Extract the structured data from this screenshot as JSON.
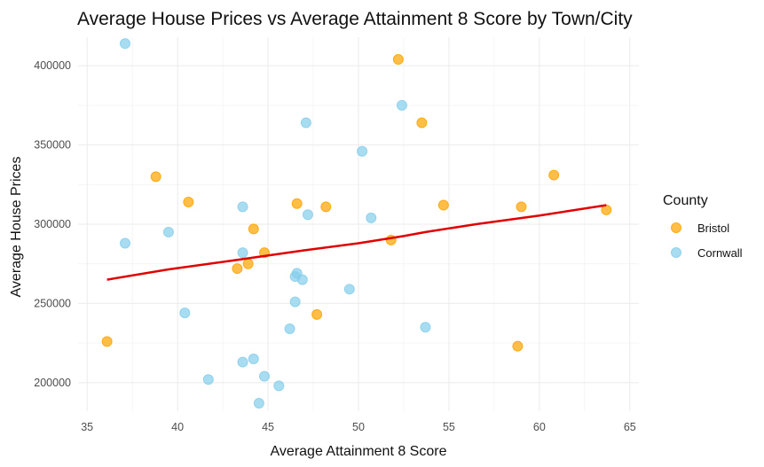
{
  "chart_data": {
    "type": "scatter",
    "title": "Average House Prices vs Average Attainment 8 Score by Town/City",
    "xlabel": "Average Attainment 8 Score",
    "ylabel": "Average House Prices",
    "xlim": [
      34.5,
      65.5
    ],
    "ylim": [
      182000,
      418000
    ],
    "x_ticks": [
      35,
      40,
      45,
      50,
      55,
      60,
      65
    ],
    "y_ticks": [
      200000,
      250000,
      300000,
      350000,
      400000
    ],
    "x_tick_labels": [
      "35",
      "40",
      "45",
      "50",
      "55",
      "60",
      "65"
    ],
    "y_tick_labels": [
      "200000",
      "250000",
      "300000",
      "350000",
      "400000"
    ],
    "grid": true,
    "legend": {
      "title": "County",
      "placement": "right",
      "entries": [
        {
          "label": "Bristol",
          "color": "#FFA500"
        },
        {
          "label": "Cornwall",
          "color": "#87CEEB"
        }
      ]
    },
    "series": [
      {
        "name": "Cornwall",
        "color": "#87CEEB",
        "points": [
          {
            "x": 37.1,
            "y": 414000
          },
          {
            "x": 37.1,
            "y": 288000
          },
          {
            "x": 39.5,
            "y": 295000
          },
          {
            "x": 40.4,
            "y": 244000
          },
          {
            "x": 41.7,
            "y": 202000
          },
          {
            "x": 43.6,
            "y": 311000
          },
          {
            "x": 43.6,
            "y": 282000
          },
          {
            "x": 43.6,
            "y": 213000
          },
          {
            "x": 44.2,
            "y": 215000
          },
          {
            "x": 44.5,
            "y": 187000
          },
          {
            "x": 44.8,
            "y": 204000
          },
          {
            "x": 45.6,
            "y": 198000
          },
          {
            "x": 46.2,
            "y": 234000
          },
          {
            "x": 46.5,
            "y": 251000
          },
          {
            "x": 46.5,
            "y": 267000
          },
          {
            "x": 46.6,
            "y": 269000
          },
          {
            "x": 46.9,
            "y": 265000
          },
          {
            "x": 47.1,
            "y": 364000
          },
          {
            "x": 47.2,
            "y": 306000
          },
          {
            "x": 49.5,
            "y": 259000
          },
          {
            "x": 50.2,
            "y": 346000
          },
          {
            "x": 50.7,
            "y": 304000
          },
          {
            "x": 52.4,
            "y": 375000
          },
          {
            "x": 53.7,
            "y": 235000
          }
        ]
      },
      {
        "name": "Bristol",
        "color": "#FFA500",
        "points": [
          {
            "x": 36.1,
            "y": 226000
          },
          {
            "x": 38.8,
            "y": 330000
          },
          {
            "x": 40.6,
            "y": 314000
          },
          {
            "x": 43.3,
            "y": 272000
          },
          {
            "x": 43.9,
            "y": 275000
          },
          {
            "x": 44.2,
            "y": 297000
          },
          {
            "x": 44.8,
            "y": 282000
          },
          {
            "x": 46.6,
            "y": 313000
          },
          {
            "x": 47.7,
            "y": 243000
          },
          {
            "x": 48.2,
            "y": 311000
          },
          {
            "x": 51.8,
            "y": 290000
          },
          {
            "x": 52.2,
            "y": 404000
          },
          {
            "x": 53.5,
            "y": 364000
          },
          {
            "x": 54.7,
            "y": 312000
          },
          {
            "x": 58.8,
            "y": 223000
          },
          {
            "x": 59.0,
            "y": 311000
          },
          {
            "x": 60.8,
            "y": 331000
          },
          {
            "x": 63.7,
            "y": 309000
          }
        ]
      }
    ],
    "trend_line": {
      "color": "#E00000",
      "points": [
        {
          "x": 36.1,
          "y": 265000
        },
        {
          "x": 39.5,
          "y": 271500
        },
        {
          "x": 43.0,
          "y": 277000
        },
        {
          "x": 47.0,
          "y": 283500
        },
        {
          "x": 50.0,
          "y": 288000
        },
        {
          "x": 52.5,
          "y": 292500
        },
        {
          "x": 53.7,
          "y": 295000
        },
        {
          "x": 56.5,
          "y": 300000
        },
        {
          "x": 60.0,
          "y": 305500
        },
        {
          "x": 63.7,
          "y": 312000
        }
      ]
    }
  }
}
